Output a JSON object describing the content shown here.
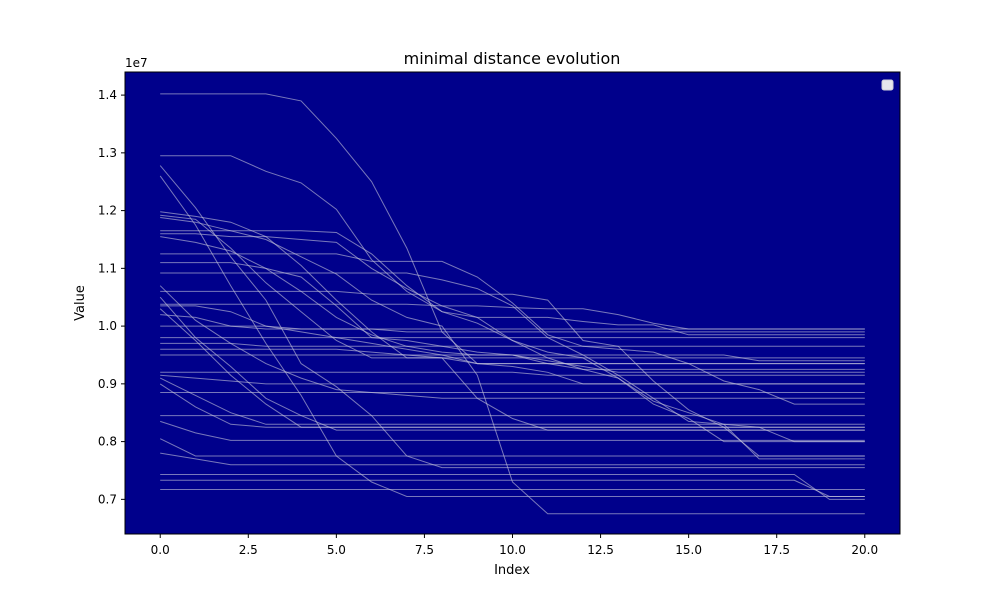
{
  "chart_data": {
    "type": "line",
    "title": "minimal distance evolution",
    "xlabel": "Index",
    "ylabel": "Value",
    "y_offset_label": "1e7",
    "xlim": [
      -1,
      21
    ],
    "ylim": [
      6400000,
      14400000
    ],
    "x_ticks": [
      0.0,
      2.5,
      5.0,
      7.5,
      10.0,
      12.5,
      15.0,
      17.5,
      20.0
    ],
    "x_tick_labels": [
      "0.0",
      "2.5",
      "5.0",
      "7.5",
      "10.0",
      "12.5",
      "15.0",
      "17.5",
      "20.0"
    ],
    "y_ticks": [
      7000000,
      8000000,
      9000000,
      10000000,
      11000000,
      12000000,
      13000000,
      14000000
    ],
    "y_tick_labels": [
      "0.7",
      "0.8",
      "0.9",
      "1.0",
      "1.1",
      "1.2",
      "1.3",
      "1.4"
    ],
    "legend": "top-right",
    "x": [
      0,
      1,
      2,
      3,
      4,
      5,
      6,
      7,
      8,
      9,
      10,
      11,
      12,
      13,
      14,
      15,
      16,
      17,
      18,
      19,
      20
    ],
    "series": [
      {
        "values": [
          14020000,
          14020000,
          14020000,
          14020000,
          13900000,
          13250000,
          12500000,
          11350000,
          9900000,
          9350000,
          9350000,
          9350000,
          9350000,
          9350000,
          9350000,
          9350000,
          9350000,
          9350000,
          9350000,
          9350000,
          9350000
        ]
      },
      {
        "values": [
          12950000,
          12950000,
          12950000,
          12680000,
          12480000,
          12020000,
          11150000,
          10600000,
          10250000,
          10150000,
          10150000,
          10150000,
          10080000,
          10020000,
          10020000,
          9850000,
          9850000,
          9850000,
          9850000,
          9850000,
          9850000
        ]
      },
      {
        "values": [
          12780000,
          12050000,
          11200000,
          10450000,
          9350000,
          8950000,
          8450000,
          7750000,
          7550000,
          7550000,
          7550000,
          7550000,
          7550000,
          7550000,
          7550000,
          7550000,
          7550000,
          7550000,
          7550000,
          7550000,
          7550000
        ]
      },
      {
        "values": [
          12600000,
          11750000,
          10700000,
          9700000,
          8800000,
          7750000,
          7300000,
          7050000,
          7050000,
          7050000,
          7050000,
          7050000,
          7050000,
          7050000,
          7050000,
          7050000,
          7050000,
          7050000,
          7050000,
          7050000,
          7050000
        ]
      },
      {
        "values": [
          11980000,
          11900000,
          11800000,
          11550000,
          11050000,
          10450000,
          9900000,
          9450000,
          9450000,
          9350000,
          9350000,
          9350000,
          9350000,
          9350000,
          9350000,
          9350000,
          9350000,
          9350000,
          9350000,
          9350000,
          9350000
        ]
      },
      {
        "values": [
          11920000,
          11850000,
          11350000,
          10750000,
          10250000,
          9750000,
          9450000,
          9450000,
          9450000,
          8750000,
          8400000,
          8200000,
          8200000,
          8200000,
          8200000,
          8200000,
          8200000,
          8200000,
          8200000,
          8200000,
          8200000
        ]
      },
      {
        "values": [
          11880000,
          11800000,
          11650000,
          11500000,
          11200000,
          10900000,
          10450000,
          10150000,
          10000000,
          9150000,
          7300000,
          6750000,
          6750000,
          6750000,
          6750000,
          6750000,
          6750000,
          6750000,
          6750000,
          6750000,
          6750000
        ]
      },
      {
        "values": [
          11650000,
          11650000,
          11650000,
          11650000,
          11650000,
          11620000,
          11250000,
          10700000,
          10250000,
          10050000,
          9750000,
          9450000,
          9250000,
          9100000,
          8700000,
          8500000,
          8300000,
          8250000,
          8000000,
          8000000,
          8000000
        ]
      },
      {
        "values": [
          11600000,
          11600000,
          11550000,
          11550000,
          11500000,
          11450000,
          11000000,
          10650000,
          10350000,
          10150000,
          9750000,
          9550000,
          9450000,
          9100000,
          8650000,
          8400000,
          8000000,
          8000000,
          8000000,
          8000000,
          8000000
        ]
      },
      {
        "values": [
          11550000,
          11450000,
          11300000,
          11000000,
          10600000,
          10150000,
          9850000,
          9650000,
          9550000,
          9500000,
          9500000,
          9350000,
          9250000,
          9250000,
          9250000,
          9250000,
          9250000,
          9250000,
          9250000,
          9250000,
          9250000
        ]
      },
      {
        "values": [
          11250000,
          11250000,
          11250000,
          11250000,
          11250000,
          11250000,
          11120000,
          11120000,
          11120000,
          10850000,
          10400000,
          9850000,
          9650000,
          9600000,
          9550000,
          9350000,
          9050000,
          8900000,
          8650000,
          8650000,
          8650000
        ]
      },
      {
        "values": [
          11100000,
          11100000,
          11100000,
          11000000,
          10850000,
          10350000,
          9800000,
          9750000,
          9650000,
          9550000,
          9500000,
          9400000,
          9300000,
          9200000,
          9200000,
          9200000,
          9200000,
          9200000,
          9200000,
          9200000,
          9200000
        ]
      },
      {
        "values": [
          10920000,
          10920000,
          10920000,
          10920000,
          10920000,
          10920000,
          10920000,
          10920000,
          10800000,
          10650000,
          10350000,
          9800000,
          9500000,
          9150000,
          8750000,
          8350000,
          8300000,
          7700000,
          7700000,
          7700000,
          7700000
        ]
      },
      {
        "values": [
          10700000,
          10100000,
          9700000,
          9350000,
          9100000,
          8900000,
          8850000,
          8800000,
          8750000,
          8750000,
          8750000,
          8750000,
          8750000,
          8750000,
          8750000,
          8750000,
          8750000,
          8750000,
          8750000,
          8750000,
          8750000
        ]
      },
      {
        "values": [
          10600000,
          10600000,
          10600000,
          10600000,
          10600000,
          10600000,
          10550000,
          10550000,
          10550000,
          10550000,
          10550000,
          10450000,
          9750000,
          9650000,
          9050000,
          8550000,
          8250000,
          7750000,
          7750000,
          7750000,
          7750000
        ]
      },
      {
        "values": [
          10500000,
          9800000,
          9300000,
          8750000,
          8450000,
          8200000,
          8200000,
          8200000,
          8200000,
          8200000,
          8200000,
          8200000,
          8200000,
          8200000,
          8200000,
          8200000,
          8200000,
          8200000,
          8200000,
          8200000,
          8200000
        ]
      },
      {
        "values": [
          10380000,
          10380000,
          10380000,
          10380000,
          10380000,
          10380000,
          10380000,
          10380000,
          10350000,
          10350000,
          10320000,
          10300000,
          10300000,
          10200000,
          10050000,
          9950000,
          9950000,
          9950000,
          9950000,
          9950000,
          9950000
        ]
      },
      {
        "values": [
          10350000,
          10350000,
          10250000,
          10000000,
          9900000,
          9800000,
          9700000,
          9600000,
          9500000,
          9350000,
          9300000,
          9200000,
          9000000,
          9000000,
          9000000,
          9000000,
          9000000,
          9000000,
          9000000,
          9000000,
          9000000
        ]
      },
      {
        "values": [
          10300000,
          9750000,
          9150000,
          8650000,
          8250000,
          8250000,
          8250000,
          8250000,
          8250000,
          8250000,
          8250000,
          8250000,
          8250000,
          8250000,
          8250000,
          8250000,
          8250000,
          8250000,
          8250000,
          8250000,
          8250000
        ]
      },
      {
        "values": [
          10200000,
          10150000,
          10000000,
          9950000,
          9950000,
          9950000,
          9950000,
          9900000,
          9900000,
          9900000,
          9900000,
          9900000,
          9900000,
          9900000,
          9900000,
          9900000,
          9900000,
          9900000,
          9900000,
          9900000,
          9900000
        ]
      },
      {
        "values": [
          10000000,
          10000000,
          10000000,
          10000000,
          9950000,
          9950000,
          9950000,
          9950000,
          9950000,
          9950000,
          9950000,
          9950000,
          9950000,
          9950000,
          9950000,
          9950000,
          9950000,
          9950000,
          9950000,
          9950000,
          9950000
        ]
      },
      {
        "values": [
          9800000,
          9800000,
          9800000,
          9800000,
          9800000,
          9800000,
          9800000,
          9800000,
          9800000,
          9800000,
          9800000,
          9800000,
          9800000,
          9800000,
          9800000,
          9800000,
          9800000,
          9800000,
          9800000,
          9800000,
          9800000
        ]
      },
      {
        "values": [
          9700000,
          9700000,
          9700000,
          9650000,
          9650000,
          9650000,
          9650000,
          9650000,
          9650000,
          9650000,
          9650000,
          9650000,
          9650000,
          9650000,
          9650000,
          9650000,
          9650000,
          9650000,
          9650000,
          9650000,
          9650000
        ]
      },
      {
        "values": [
          9600000,
          9600000,
          9600000,
          9600000,
          9600000,
          9600000,
          9550000,
          9500000,
          9450000,
          9450000,
          9450000,
          9450000,
          9450000,
          9450000,
          9450000,
          9450000,
          9450000,
          9450000,
          9450000,
          9450000,
          9450000
        ]
      },
      {
        "values": [
          9500000,
          9500000,
          9500000,
          9500000,
          9500000,
          9500000,
          9500000,
          9500000,
          9500000,
          9500000,
          9500000,
          9500000,
          9500000,
          9500000,
          9500000,
          9500000,
          9500000,
          9400000,
          9400000,
          9400000,
          9400000
        ]
      },
      {
        "values": [
          9200000,
          9200000,
          9200000,
          9200000,
          9200000,
          9200000,
          9200000,
          9200000,
          9200000,
          9200000,
          9200000,
          9150000,
          9150000,
          9150000,
          9150000,
          9150000,
          9150000,
          9150000,
          9150000,
          9150000,
          9150000
        ]
      },
      {
        "values": [
          9150000,
          9100000,
          9050000,
          9000000,
          9000000,
          9000000,
          9000000,
          9000000,
          9000000,
          9000000,
          9000000,
          9000000,
          9000000,
          9000000,
          9000000,
          9000000,
          9000000,
          9000000,
          9000000,
          9000000,
          9000000
        ]
      },
      {
        "values": [
          9100000,
          8800000,
          8500000,
          8300000,
          8300000,
          8300000,
          8300000,
          8300000,
          8300000,
          8300000,
          8300000,
          8300000,
          8300000,
          8300000,
          8300000,
          8300000,
          8300000,
          8300000,
          8300000,
          8300000,
          8300000
        ]
      },
      {
        "values": [
          9000000,
          8600000,
          8300000,
          8250000,
          8250000,
          8250000,
          8250000,
          8250000,
          8250000,
          8250000,
          8250000,
          8250000,
          8250000,
          8250000,
          8250000,
          8250000,
          8250000,
          8250000,
          8250000,
          8250000,
          8250000
        ]
      },
      {
        "values": [
          8850000,
          8850000,
          8850000,
          8850000,
          8850000,
          8850000,
          8850000,
          8850000,
          8850000,
          8850000,
          8850000,
          8850000,
          8850000,
          8850000,
          8850000,
          8850000,
          8850000,
          8850000,
          8850000,
          8850000,
          8850000
        ]
      },
      {
        "values": [
          8450000,
          8450000,
          8450000,
          8450000,
          8450000,
          8450000,
          8450000,
          8450000,
          8450000,
          8450000,
          8450000,
          8450000,
          8450000,
          8450000,
          8450000,
          8450000,
          8450000,
          8450000,
          8450000,
          8450000,
          8450000
        ]
      },
      {
        "values": [
          8350000,
          8150000,
          8020000,
          8020000,
          8020000,
          8020000,
          8020000,
          8020000,
          8020000,
          8020000,
          8020000,
          8020000,
          8020000,
          8020000,
          8020000,
          8020000,
          8020000,
          8020000,
          8020000,
          8020000,
          8020000
        ]
      },
      {
        "values": [
          8050000,
          7750000,
          7750000,
          7750000,
          7750000,
          7750000,
          7750000,
          7750000,
          7750000,
          7750000,
          7750000,
          7750000,
          7750000,
          7750000,
          7750000,
          7750000,
          7750000,
          7750000,
          7750000,
          7750000,
          7750000
        ]
      },
      {
        "values": [
          7800000,
          7700000,
          7600000,
          7600000,
          7600000,
          7600000,
          7600000,
          7600000,
          7600000,
          7600000,
          7600000,
          7600000,
          7600000,
          7600000,
          7600000,
          7600000,
          7600000,
          7600000,
          7600000,
          7600000,
          7600000
        ]
      },
      {
        "values": [
          7430000,
          7430000,
          7430000,
          7430000,
          7430000,
          7430000,
          7430000,
          7430000,
          7430000,
          7430000,
          7430000,
          7430000,
          7430000,
          7430000,
          7430000,
          7430000,
          7430000,
          7430000,
          7430000,
          7000000,
          7000000
        ]
      },
      {
        "values": [
          7330000,
          7330000,
          7330000,
          7330000,
          7330000,
          7330000,
          7330000,
          7330000,
          7330000,
          7330000,
          7330000,
          7330000,
          7330000,
          7330000,
          7330000,
          7330000,
          7330000,
          7330000,
          7330000,
          7050000,
          7050000
        ]
      },
      {
        "values": [
          7170000,
          7170000,
          7170000,
          7170000,
          7170000,
          7170000,
          7170000,
          7170000,
          7170000,
          7170000,
          7170000,
          7170000,
          7170000,
          7170000,
          7170000,
          7170000,
          7170000,
          7170000,
          7170000,
          7170000,
          7170000
        ]
      }
    ]
  },
  "colors": {
    "plot_background": "#00008b",
    "line": "#c8c8dc",
    "legend_box": "#e6e6ec"
  }
}
